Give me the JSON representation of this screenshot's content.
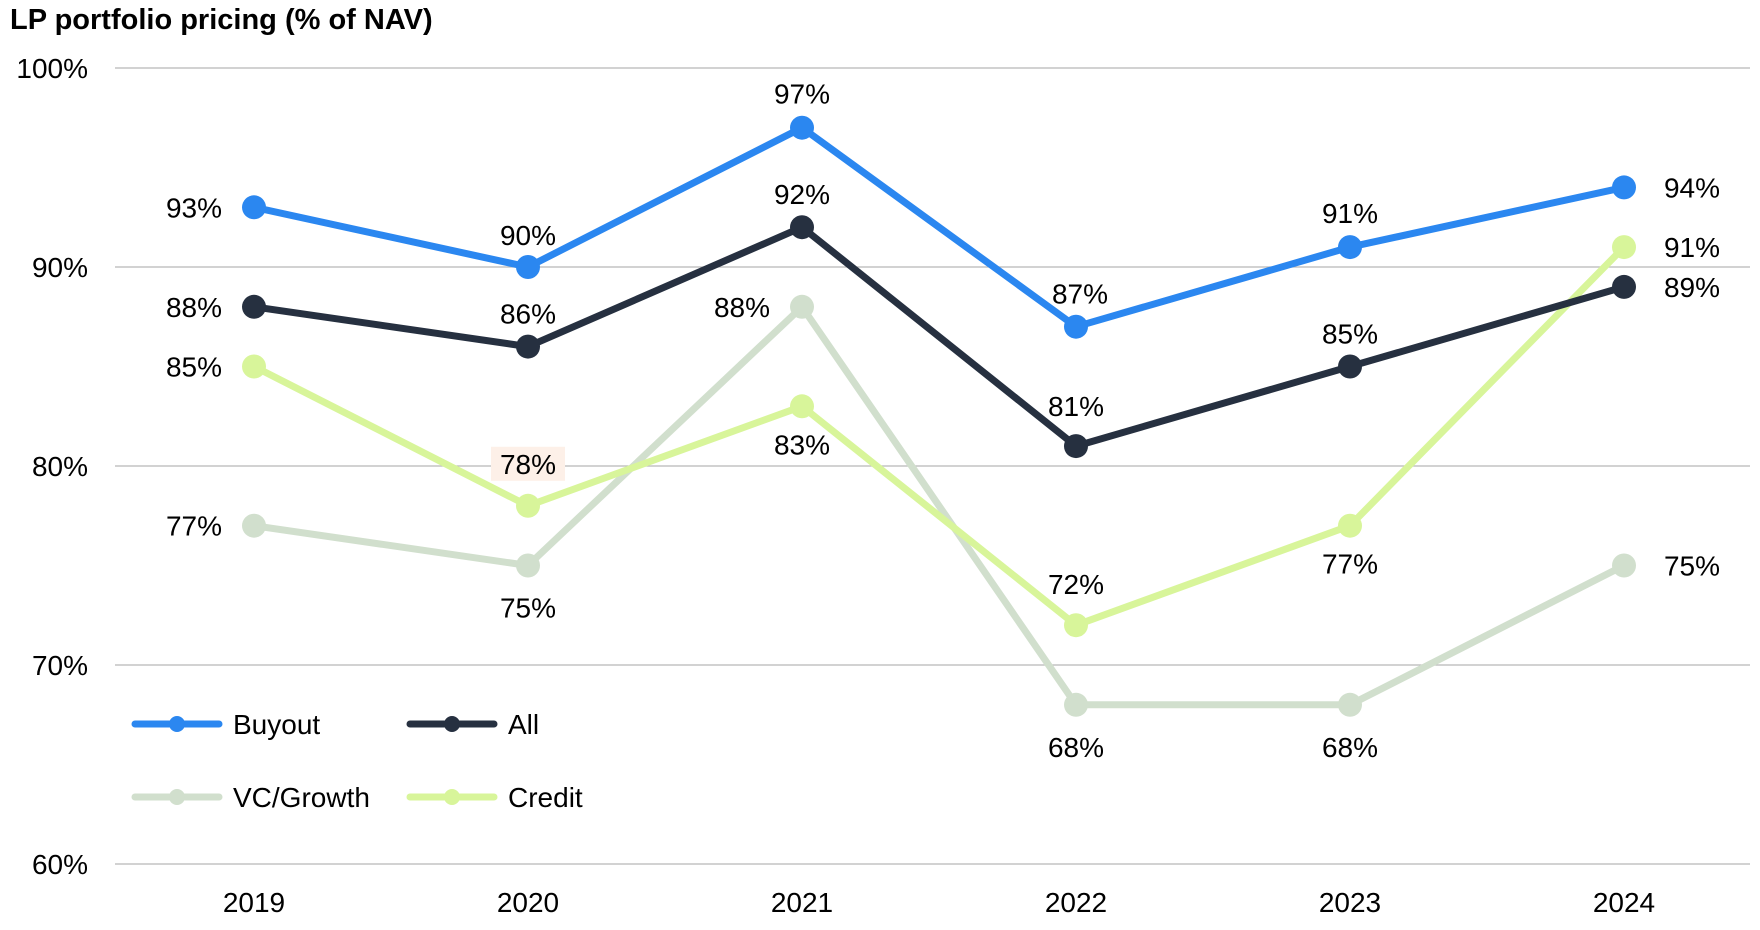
{
  "chart_data": {
    "type": "line",
    "title": "LP portfolio pricing (% of NAV)",
    "categories": [
      "2019",
      "2020",
      "2021",
      "2022",
      "2023",
      "2024"
    ],
    "ylim": [
      60,
      100
    ],
    "yticks": [
      60,
      70,
      80,
      90,
      100
    ],
    "ytick_labels": [
      "60%",
      "70%",
      "80%",
      "90%",
      "100%"
    ],
    "grid": true,
    "legend_position": "bottom-left",
    "series": [
      {
        "name": "Buyout",
        "color": "#2b87f0",
        "values": [
          93,
          90,
          97,
          87,
          91,
          94
        ],
        "labels": [
          "93%",
          "90%",
          "97%",
          "87%",
          "91%",
          "94%"
        ]
      },
      {
        "name": "All",
        "color": "#263040",
        "values": [
          88,
          86,
          92,
          81,
          85,
          89
        ],
        "labels": [
          "88%",
          "86%",
          "92%",
          "81%",
          "85%",
          "89%"
        ]
      },
      {
        "name": "VC/Growth",
        "color": "#d1dfcd",
        "values": [
          77,
          75,
          88,
          68,
          68,
          75
        ],
        "labels": [
          "77%",
          "75%",
          "88%",
          "68%",
          "68%",
          "75%"
        ]
      },
      {
        "name": "Credit",
        "color": "#d8f59a",
        "values": [
          85,
          78,
          83,
          72,
          77,
          91
        ],
        "labels": [
          "85%",
          "78%",
          "83%",
          "72%",
          "77%",
          "91%"
        ]
      }
    ]
  }
}
